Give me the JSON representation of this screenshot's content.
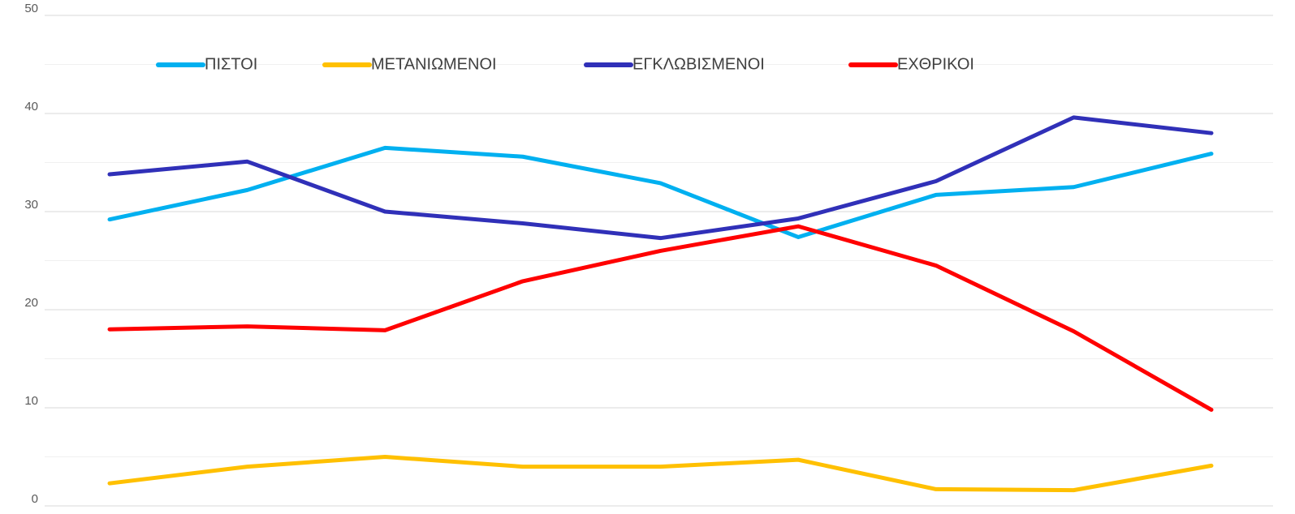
{
  "chart_data": {
    "type": "line",
    "categories": [
      null,
      null,
      null,
      null,
      null,
      null,
      null,
      null,
      null
    ],
    "series": [
      {
        "name": "ΠΙΣΤΟΙ",
        "color": "#00b0f0",
        "values": [
          29.2,
          32.2,
          36.5,
          35.6,
          32.9,
          27.4,
          31.7,
          32.5,
          35.9
        ]
      },
      {
        "name": "ΜΕΤΑΝΙΩΜΕΝΟΙ",
        "color": "#ffc000",
        "values": [
          2.3,
          4.0,
          5.0,
          4.0,
          4.0,
          4.7,
          1.7,
          1.6,
          4.1
        ]
      },
      {
        "name": "ΕΓΚΛΩΒΙΣΜΕΝΟΙ",
        "color": "#3030b8",
        "values": [
          33.8,
          35.1,
          30.0,
          28.8,
          27.3,
          29.3,
          33.1,
          39.6,
          38.0
        ]
      },
      {
        "name": "ΕΧΘΡΙΚΟΙ",
        "color": "#ff0000",
        "values": [
          18.0,
          18.3,
          17.9,
          22.9,
          26.0,
          28.5,
          24.5,
          17.8,
          9.8
        ]
      }
    ],
    "ylim": [
      0,
      50
    ],
    "yticks": [
      0,
      10,
      20,
      30,
      40,
      50
    ],
    "grid": true,
    "legend": "top"
  }
}
